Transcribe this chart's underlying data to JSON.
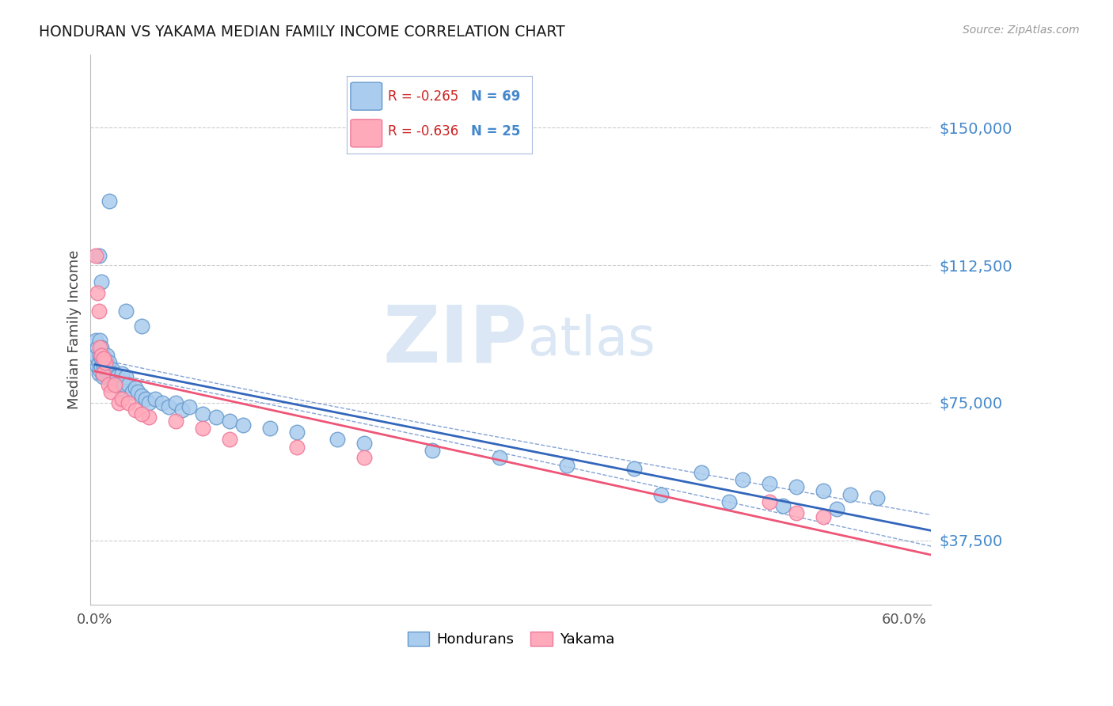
{
  "title": "HONDURAN VS YAKAMA MEDIAN FAMILY INCOME CORRELATION CHART",
  "source": "Source: ZipAtlas.com",
  "ylabel": "Median Family Income",
  "watermark_zip": "ZIP",
  "watermark_atlas": "atlas",
  "ytick_labels": [
    "$37,500",
    "$75,000",
    "$112,500",
    "$150,000"
  ],
  "ytick_values": [
    37500,
    75000,
    112500,
    150000
  ],
  "ylim": [
    20000,
    170000
  ],
  "xlim": [
    -0.003,
    0.62
  ],
  "legend_blue_r": "R = -0.265",
  "legend_blue_n": "N = 69",
  "legend_pink_r": "R = -0.636",
  "legend_pink_n": "N = 25",
  "legend_label_blue": "Hondurans",
  "legend_label_pink": "Yakama",
  "title_color": "#1a1a1a",
  "source_color": "#999999",
  "ytick_color": "#4488cc",
  "xtick_color": "#555555",
  "grid_color": "#cccccc",
  "line_blue_color": "#3366bb",
  "line_pink_color": "#ee5577",
  "scatter_blue_facecolor": "#aaccee",
  "scatter_blue_edgecolor": "#6699cc",
  "scatter_pink_facecolor": "#ffaabb",
  "scatter_pink_edgecolor": "#ee7799",
  "honduran_x": [
    0.001,
    0.001,
    0.002,
    0.002,
    0.003,
    0.003,
    0.004,
    0.004,
    0.004,
    0.005,
    0.005,
    0.005,
    0.006,
    0.006,
    0.006,
    0.007,
    0.007,
    0.008,
    0.008,
    0.009,
    0.009,
    0.009,
    0.01,
    0.01,
    0.011,
    0.011,
    0.012,
    0.013,
    0.014,
    0.015,
    0.016,
    0.017,
    0.018,
    0.019,
    0.02,
    0.022,
    0.023,
    0.025,
    0.028,
    0.03,
    0.032,
    0.035,
    0.038,
    0.04,
    0.045,
    0.05,
    0.055,
    0.06,
    0.065,
    0.07,
    0.08,
    0.09,
    0.1,
    0.11,
    0.13,
    0.15,
    0.18,
    0.2,
    0.25,
    0.3,
    0.35,
    0.4,
    0.45,
    0.48,
    0.5,
    0.52,
    0.54,
    0.56,
    0.58
  ],
  "honduran_y": [
    88000,
    92000,
    85000,
    90000,
    86000,
    83000,
    88000,
    84000,
    92000,
    87000,
    85000,
    90000,
    86000,
    82000,
    88000,
    85000,
    83000,
    87000,
    84000,
    86000,
    82000,
    88000,
    85000,
    83000,
    86000,
    84000,
    82000,
    84000,
    83000,
    82000,
    80000,
    82000,
    80000,
    79000,
    83000,
    80000,
    82000,
    80000,
    78000,
    79000,
    78000,
    77000,
    76000,
    75000,
    76000,
    75000,
    74000,
    75000,
    73000,
    74000,
    72000,
    71000,
    70000,
    69000,
    68000,
    67000,
    65000,
    64000,
    62000,
    60000,
    58000,
    57000,
    56000,
    54000,
    53000,
    52000,
    51000,
    50000,
    49000
  ],
  "honduran_y_outliers": [
    130000,
    115000,
    108000,
    100000,
    96000,
    50000,
    48000,
    47000,
    46000
  ],
  "honduran_x_outliers": [
    0.011,
    0.003,
    0.005,
    0.023,
    0.035,
    0.42,
    0.47,
    0.51,
    0.55
  ],
  "yakama_x": [
    0.001,
    0.002,
    0.003,
    0.004,
    0.005,
    0.006,
    0.008,
    0.01,
    0.012,
    0.015,
    0.018,
    0.02,
    0.025,
    0.03,
    0.04,
    0.06,
    0.08,
    0.1,
    0.15,
    0.2,
    0.5,
    0.52,
    0.54,
    0.007,
    0.035
  ],
  "yakama_y": [
    115000,
    105000,
    100000,
    90000,
    88000,
    83000,
    86000,
    80000,
    78000,
    80000,
    75000,
    76000,
    75000,
    73000,
    71000,
    70000,
    68000,
    65000,
    63000,
    60000,
    48000,
    45000,
    44000,
    87000,
    72000
  ]
}
